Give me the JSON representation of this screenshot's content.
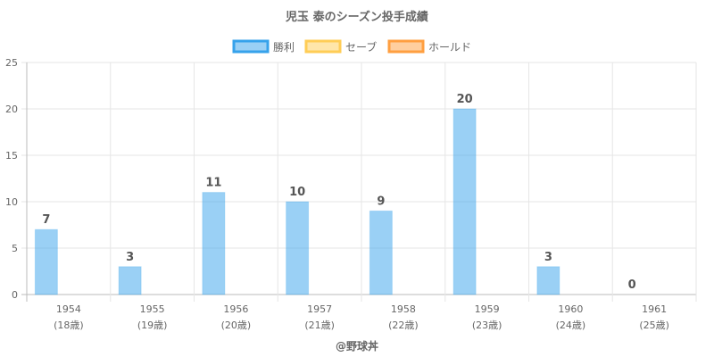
{
  "chart_data": {
    "type": "bar",
    "title": "児玉 泰のシーズン投手成績",
    "categories": [
      "1954",
      "1955",
      "1956",
      "1957",
      "1958",
      "1959",
      "1960",
      "1961"
    ],
    "sublabels": [
      "(18歳)",
      "(19歳)",
      "(20歳)",
      "(21歳)",
      "(22歳)",
      "(23歳)",
      "(24歳)",
      "(25歳)"
    ],
    "series": [
      {
        "name": "勝利",
        "values": [
          7,
          3,
          11,
          10,
          9,
          20,
          3,
          0
        ],
        "color": "#36a2eb"
      },
      {
        "name": "セーブ",
        "values": [
          null,
          null,
          null,
          null,
          null,
          null,
          null,
          null
        ],
        "color": "#ffcd56"
      },
      {
        "name": "ホールド",
        "values": [
          null,
          null,
          null,
          null,
          null,
          null,
          null,
          null
        ],
        "color": "#ff9f40"
      }
    ],
    "data_labels": [
      "7",
      "3",
      "11",
      "10",
      "9",
      "20",
      "3",
      "0"
    ],
    "ylim": [
      0,
      25
    ],
    "yticks": [
      "0",
      "5",
      "10",
      "15",
      "20",
      "25"
    ],
    "grid": true,
    "legend_position": "top",
    "credit": "@野球丼"
  }
}
